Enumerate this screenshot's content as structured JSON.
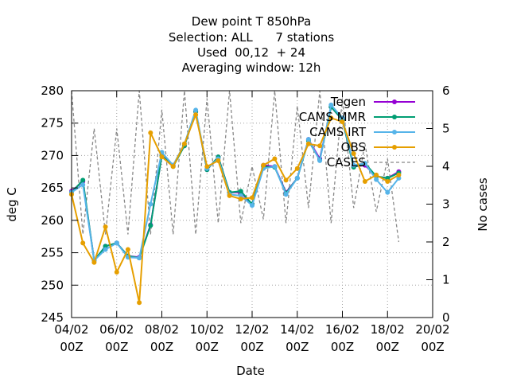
{
  "chart_data": {
    "type": "line",
    "title_lines": [
      "Dew point T 850hPa",
      "Selection: ALL      7 stations",
      "Used  00,12  + 24",
      "Averaging window: 12h"
    ],
    "xlabel": "Date",
    "ylabel": "deg C",
    "y2label": "No cases",
    "xlim": [
      0,
      16
    ],
    "ylim": [
      245,
      280
    ],
    "y2lim": [
      0,
      6
    ],
    "x_ticks": [
      {
        "x": 0,
        "line1": "04/02",
        "line2": "00Z"
      },
      {
        "x": 2,
        "line1": "06/02",
        "line2": "00Z"
      },
      {
        "x": 4,
        "line1": "08/02",
        "line2": "00Z"
      },
      {
        "x": 6,
        "line1": "10/02",
        "line2": "00Z"
      },
      {
        "x": 8,
        "line1": "12/02",
        "line2": "00Z"
      },
      {
        "x": 10,
        "line1": "14/02",
        "line2": "00Z"
      },
      {
        "x": 12,
        "line1": "16/02",
        "line2": "00Z"
      },
      {
        "x": 14,
        "line1": "18/02",
        "line2": "00Z"
      },
      {
        "x": 16,
        "line1": "20/02",
        "line2": "00Z"
      }
    ],
    "y_ticks": [
      "245",
      "250",
      "255",
      "260",
      "265",
      "270",
      "275",
      "280"
    ],
    "y2_ticks": [
      "0",
      "1",
      "2",
      "3",
      "4",
      "5",
      "6"
    ],
    "grid": true,
    "legend_position": "top-right",
    "x": [
      0,
      0.5,
      1,
      1.5,
      2,
      2.5,
      3,
      3.5,
      4,
      4.5,
      5,
      5.5,
      6,
      6.5,
      7,
      7.5,
      8,
      8.5,
      9,
      9.5,
      10,
      10.5,
      11,
      11.5,
      12,
      12.5,
      13,
      13.5,
      14,
      14.5
    ],
    "series": [
      {
        "name": "Tegen",
        "color": "#9400d3",
        "values": [
          264.5,
          266,
          253.8,
          256,
          256.5,
          254.5,
          254.3,
          259.3,
          270,
          268.5,
          271.5,
          276.8,
          267.8,
          269.8,
          264.3,
          264.3,
          262.5,
          268.5,
          268.3,
          264.3,
          266.5,
          272.5,
          269.5,
          277.5,
          275.5,
          268.3,
          268.5,
          266.8,
          266.5,
          267.5
        ]
      },
      {
        "name": "CAMS MMR",
        "color": "#009e73",
        "values": [
          264.3,
          266.2,
          253.8,
          256,
          256.5,
          254.5,
          254.2,
          259.2,
          270,
          268.3,
          271.5,
          276.8,
          267.8,
          269.8,
          264.3,
          264.5,
          262.5,
          268.3,
          268.2,
          264.2,
          266.5,
          272.3,
          269.3,
          277.5,
          275.5,
          268.2,
          268.8,
          266.8,
          266.5,
          267.3
        ]
      },
      {
        "name": "CAMS IRT",
        "color": "#56b4e9",
        "values": [
          264.3,
          265.5,
          253.8,
          255.5,
          256.5,
          254.3,
          254.2,
          262.5,
          270.5,
          268.5,
          271.8,
          277,
          268,
          269.5,
          264,
          263.8,
          262.3,
          268,
          268.3,
          264,
          266.5,
          272.5,
          269.2,
          277.8,
          275.8,
          268.5,
          268.8,
          266.3,
          264.3,
          266.5
        ]
      },
      {
        "name": "OBS",
        "color": "#e69f00",
        "values": [
          264,
          256.5,
          253.5,
          259,
          252,
          255.5,
          247.3,
          273.5,
          269.8,
          268.3,
          271.8,
          276.3,
          268.3,
          269.2,
          263.8,
          263.3,
          263.5,
          268.5,
          269.5,
          266.2,
          268,
          271.8,
          271.5,
          275.8,
          275.2,
          270.3,
          266,
          267,
          266,
          267
        ]
      },
      {
        "name": "CASES",
        "color": "#888888",
        "axis": "y2",
        "values": [
          6,
          2.2,
          5,
          2.2,
          5,
          2.2,
          6,
          2.2,
          5.5,
          2.2,
          6,
          2.2,
          5.8,
          2.5,
          6,
          2.5,
          4,
          2.6,
          6,
          2.5,
          5.6,
          2.9,
          6,
          2.5,
          5.8,
          2.9,
          4.6,
          2.8,
          4.2,
          2
        ]
      }
    ]
  }
}
